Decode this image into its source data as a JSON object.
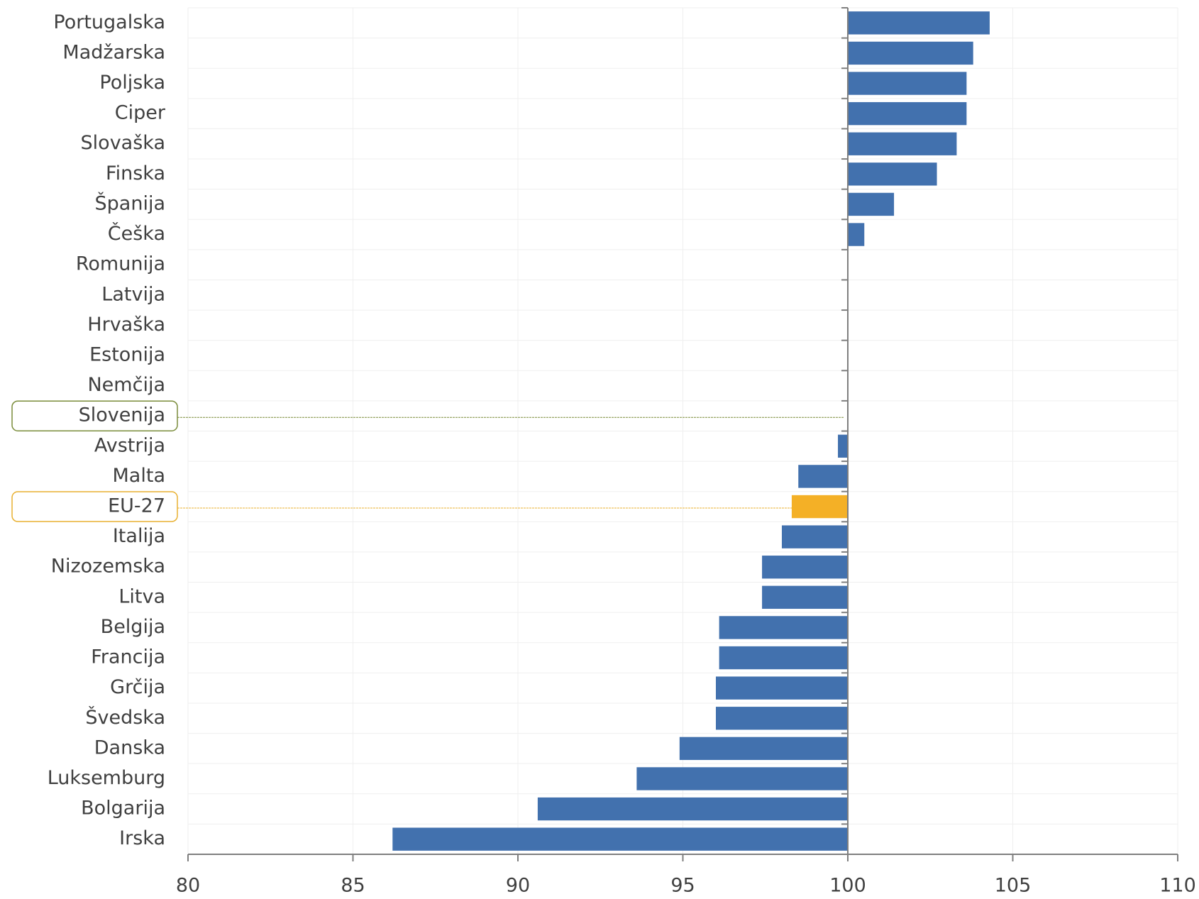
{
  "chart_data": {
    "type": "bar",
    "orientation": "horizontal",
    "categories": [
      "Portugalska",
      "Madžarska",
      "Poljska",
      "Ciper",
      "Slovaška",
      "Finska",
      "Španija",
      "Češka",
      "Romunija",
      "Latvija",
      "Hrvaška",
      "Estonija",
      "Nemčija",
      "Slovenija",
      "Avstrija",
      "Malta",
      "EU-27",
      "Italija",
      "Nizozemska",
      "Litva",
      "Belgija",
      "Francija",
      "Grčija",
      "Švedska",
      "Danska",
      "Luksemburg",
      "Bolgarija",
      "Irska"
    ],
    "values": [
      104.3,
      103.8,
      103.6,
      103.6,
      103.3,
      102.7,
      101.4,
      100.5,
      100,
      100,
      100,
      100,
      100,
      100,
      99.7,
      98.5,
      98.3,
      98.0,
      97.4,
      97.4,
      96.1,
      96.1,
      96.0,
      96.0,
      94.9,
      93.6,
      90.6,
      86.2
    ],
    "colors": [
      "#4271ae",
      "#4271ae",
      "#4271ae",
      "#4271ae",
      "#4271ae",
      "#4271ae",
      "#4271ae",
      "#4271ae",
      "#4271ae",
      "#4271ae",
      "#4271ae",
      "#4271ae",
      "#4271ae",
      "#4271ae",
      "#4271ae",
      "#4271ae",
      "#f4b026",
      "#4271ae",
      "#4271ae",
      "#4271ae",
      "#4271ae",
      "#4271ae",
      "#4271ae",
      "#4271ae",
      "#4271ae",
      "#4271ae",
      "#4271ae",
      "#4271ae"
    ],
    "label_boxes": [
      {
        "category": 13,
        "color": "#7a8c3a"
      },
      {
        "category": 16,
        "color": "#e8b030"
      }
    ],
    "xlim": [
      80,
      110
    ],
    "xticks": [
      80,
      85,
      90,
      95,
      100,
      105,
      110
    ],
    "grid": true
  }
}
